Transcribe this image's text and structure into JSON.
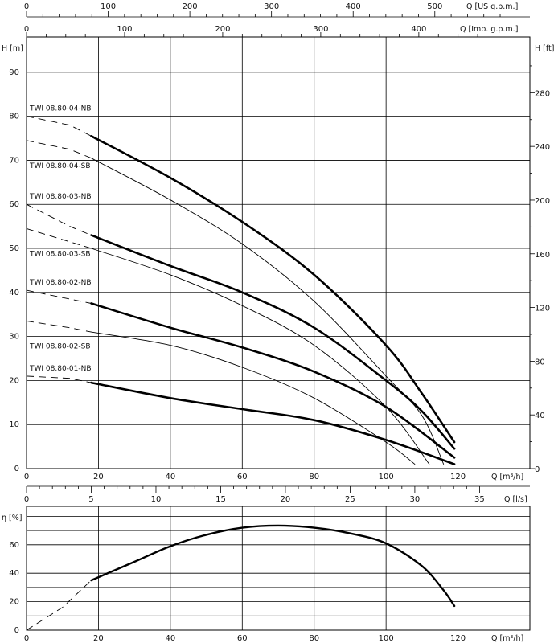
{
  "chart_data": [
    {
      "type": "line",
      "x_unit_label": "Q [m³/h]",
      "y_unit_label_left": "H [m]",
      "y_unit_label_right": "H [ft]",
      "top_axis_1_label": "Q [US g.p.m.]",
      "top_axis_2_label": "Q [Imp. g.p.m.]",
      "bottom_axis_2_label": "Q [l/s]",
      "xlim": [
        0,
        140
      ],
      "ylim": [
        0,
        98
      ],
      "x_ticks": [
        "0",
        "20",
        "40",
        "60",
        "80",
        "100",
        "120"
      ],
      "y_ticks_left": [
        "0",
        "10",
        "20",
        "30",
        "40",
        "50",
        "60",
        "70",
        "80",
        "90"
      ],
      "y_ticks_right": [
        "0",
        "40",
        "80",
        "120",
        "160",
        "200",
        "240",
        "280"
      ],
      "top1_ticks": [
        "0",
        "100",
        "200",
        "300",
        "400",
        "500"
      ],
      "top2_ticks": [
        "0",
        "100",
        "200",
        "300",
        "400"
      ],
      "ls_ticks": [
        "0",
        "5",
        "10",
        "15",
        "20",
        "25",
        "30",
        "35"
      ],
      "series": [
        {
          "name": "TWI 08.80-04-NB",
          "label": "TWI 08.80-04-NB",
          "weight": "bold",
          "dashed": [
            [
              0,
              80
            ],
            [
              12,
              78
            ],
            [
              18,
              75.5
            ]
          ],
          "points": [
            [
              18,
              75.5
            ],
            [
              40,
              66
            ],
            [
              60,
              56
            ],
            [
              80,
              44
            ],
            [
              100,
              28
            ],
            [
              110,
              17
            ],
            [
              119,
              6
            ]
          ]
        },
        {
          "name": "TWI 08.80-04-SB",
          "label": "TWI 08.80-04-SB",
          "weight": "thin",
          "dashed": [
            [
              0,
              74.5
            ],
            [
              12,
              72.5
            ],
            [
              18,
              70.5
            ]
          ],
          "points": [
            [
              18,
              70.5
            ],
            [
              40,
              61
            ],
            [
              60,
              51
            ],
            [
              80,
              38
            ],
            [
              100,
              21
            ],
            [
              110,
              12
            ],
            [
              116,
              1
            ]
          ]
        },
        {
          "name": "TWI 08.80-03-NB",
          "label": "TWI 08.80-03-NB",
          "weight": "bold",
          "dashed": [
            [
              0,
              60
            ],
            [
              12,
              55
            ],
            [
              18,
              53
            ]
          ],
          "points": [
            [
              18,
              53
            ],
            [
              40,
              46
            ],
            [
              60,
              40
            ],
            [
              80,
              32
            ],
            [
              100,
              20
            ],
            [
              110,
              13
            ],
            [
              119,
              4.5
            ]
          ]
        },
        {
          "name": "TWI 08.80-03-SB",
          "label": "TWI 08.80-03-SB",
          "weight": "thin",
          "dashed": [
            [
              0,
              54.5
            ],
            [
              12,
              51.5
            ],
            [
              18,
              50
            ]
          ],
          "points": [
            [
              18,
              50
            ],
            [
              40,
              44
            ],
            [
              60,
              37
            ],
            [
              80,
              28
            ],
            [
              100,
              14
            ],
            [
              112,
              1
            ]
          ]
        },
        {
          "name": "TWI 08.80-02-NB",
          "label": "TWI 08.80-02-NB",
          "weight": "bold",
          "dashed": [
            [
              0,
              40.5
            ],
            [
              12,
              38.5
            ],
            [
              18,
              37.5
            ]
          ],
          "points": [
            [
              18,
              37.5
            ],
            [
              40,
              32
            ],
            [
              60,
              27.5
            ],
            [
              80,
              22
            ],
            [
              100,
              14
            ],
            [
              119,
              2.5
            ]
          ]
        },
        {
          "name": "TWI 08.80-02-SB",
          "label": "TWI 08.80-02-SB",
          "weight": "thin",
          "dashed": [
            [
              0,
              33.5
            ],
            [
              12,
              32
            ],
            [
              18,
              31
            ]
          ],
          "points": [
            [
              18,
              31
            ],
            [
              40,
              28
            ],
            [
              60,
              23
            ],
            [
              80,
              16
            ],
            [
              100,
              6
            ],
            [
              108,
              1
            ]
          ]
        },
        {
          "name": "TWI 08.80-01-NB",
          "label": "TWI 08.80-01-NB",
          "weight": "bold",
          "dashed": [
            [
              0,
              21
            ],
            [
              12,
              20.5
            ],
            [
              18,
              19.5
            ]
          ],
          "points": [
            [
              18,
              19.5
            ],
            [
              40,
              16
            ],
            [
              60,
              13.5
            ],
            [
              80,
              11
            ],
            [
              100,
              6.5
            ],
            [
              119,
              1
            ]
          ]
        }
      ]
    },
    {
      "type": "line",
      "y_unit_label": "η [%]",
      "x_unit_label": "Q [m³/h]",
      "xlim": [
        0,
        140
      ],
      "ylim": [
        0,
        87
      ],
      "x_ticks": [
        "0",
        "20",
        "40",
        "60",
        "80",
        "100",
        "120"
      ],
      "y_ticks": [
        "0",
        "20",
        "40",
        "60"
      ],
      "series": [
        {
          "name": "",
          "dashed": [
            [
              0,
              0
            ],
            [
              10,
              16
            ],
            [
              18,
              35
            ]
          ],
          "points": [
            [
              18,
              35
            ],
            [
              30,
              48
            ],
            [
              40,
              59
            ],
            [
              50,
              67
            ],
            [
              60,
              72
            ],
            [
              70,
              73.5
            ],
            [
              80,
              72
            ],
            [
              90,
              68
            ],
            [
              100,
              61
            ],
            [
              110,
              45
            ],
            [
              116,
              28
            ],
            [
              119,
              17
            ]
          ]
        }
      ]
    }
  ]
}
